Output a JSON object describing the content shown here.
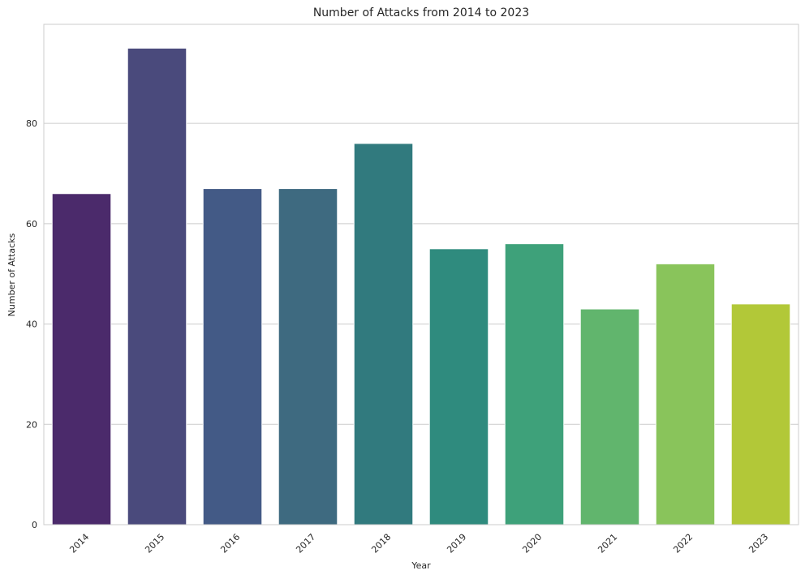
{
  "chart_data": {
    "type": "bar",
    "title": "Number of Attacks from 2014 to 2023",
    "xlabel": "Year",
    "ylabel": "Number of Attacks",
    "categories": [
      "2014",
      "2015",
      "2016",
      "2017",
      "2018",
      "2019",
      "2020",
      "2021",
      "2022",
      "2023"
    ],
    "values": [
      66,
      95,
      67,
      67,
      76,
      55,
      56,
      43,
      52,
      44
    ],
    "colors": [
      "#4b2a6b",
      "#4a4a7c",
      "#435a86",
      "#3e6a80",
      "#317a7e",
      "#2f8b7e",
      "#3ea17a",
      "#61b56d",
      "#89c45b",
      "#b2c838"
    ],
    "ylim": [
      0,
      99.75
    ],
    "yticks": [
      0,
      20,
      40,
      60,
      80
    ],
    "x_tick_rotation_deg": 45,
    "grid": "y",
    "legend": "none"
  }
}
